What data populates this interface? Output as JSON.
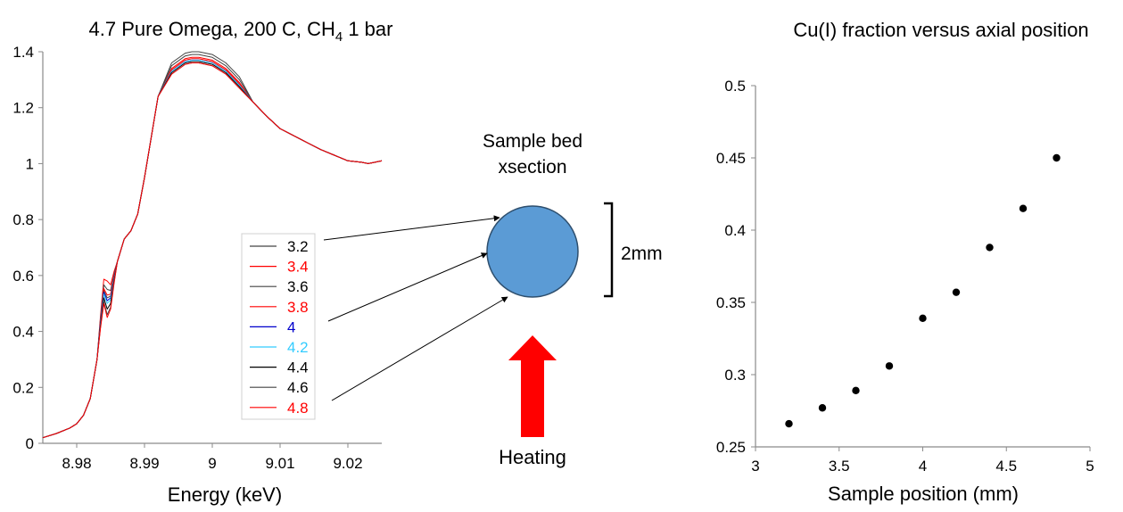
{
  "left_chart": {
    "title_main": "4.7 Pure Omega, 200 C, CH",
    "title_sub": "4",
    "title_tail": " 1 bar",
    "xlabel": "Energy (keV)"
  },
  "diagram": {
    "bed_label_line1": "Sample bed",
    "bed_label_line2": "xsection",
    "size_label": "2mm",
    "heating_label": "Heating",
    "circle_color": "#5b9bd5",
    "arrow_color": "#ff0000"
  },
  "right_chart": {
    "title": "Cu(I) fraction versus axial position",
    "xlabel": "Sample position (mm)"
  },
  "chart_data": [
    {
      "type": "line",
      "title": "4.7 Pure Omega, 200 C, CH4 1 bar",
      "xlabel": "Energy (keV)",
      "ylabel": "",
      "xlim": [
        8.975,
        9.025
      ],
      "ylim": [
        0,
        1.4
      ],
      "xticks": [
        "8.98",
        "8.99",
        "9",
        "9.01",
        "9.02"
      ],
      "yticks": [
        "0",
        "0.2",
        "0.4",
        "0.6",
        "0.8",
        "1",
        "1.2",
        "1.4"
      ],
      "grid": false,
      "legend_position": "center-right",
      "x": [
        8.975,
        8.977,
        8.979,
        8.98,
        8.981,
        8.982,
        8.983,
        8.9835,
        8.984,
        8.9845,
        8.985,
        8.9855,
        8.986,
        8.987,
        8.988,
        8.989,
        8.99,
        8.992,
        8.994,
        8.996,
        8.997,
        8.998,
        9.0,
        9.002,
        9.004,
        9.006,
        9.008,
        9.01,
        9.012,
        9.014,
        9.016,
        9.018,
        9.02,
        9.022,
        9.023,
        9.024,
        9.025
      ],
      "series": [
        {
          "name": "3.2",
          "color": "#444444",
          "peak_bump": 0.04,
          "top": 0.03
        },
        {
          "name": "3.4",
          "color": "#ff0000",
          "peak_bump": 0.1,
          "top": 0.01
        },
        {
          "name": "3.6",
          "color": "#444444",
          "peak_bump": 0.07,
          "top": 0.02
        },
        {
          "name": "3.8",
          "color": "#ff0000",
          "peak_bump": 0.05,
          "top": 0.005
        },
        {
          "name": "4",
          "color": "#0000cc",
          "peak_bump": 0.03,
          "top": 0.0
        },
        {
          "name": "4.2",
          "color": "#33ccff",
          "peak_bump": 0.02,
          "top": 0.0
        },
        {
          "name": "4.4",
          "color": "#000000",
          "peak_bump": 0.0,
          "top": -0.005
        },
        {
          "name": "4.6",
          "color": "#444444",
          "peak_bump": -0.02,
          "top": -0.01
        },
        {
          "name": "4.8",
          "color": "#ff0000",
          "peak_bump": -0.03,
          "top": -0.01
        }
      ],
      "base_curve": [
        0.02,
        0.035,
        0.055,
        0.07,
        0.1,
        0.16,
        0.3,
        0.42,
        0.52,
        0.48,
        0.5,
        0.58,
        0.65,
        0.73,
        0.76,
        0.82,
        0.95,
        1.24,
        1.33,
        1.365,
        1.37,
        1.37,
        1.36,
        1.33,
        1.28,
        1.22,
        1.17,
        1.125,
        1.1,
        1.075,
        1.05,
        1.03,
        1.01,
        1.005,
        1.0,
        1.005,
        1.01
      ]
    },
    {
      "type": "scatter",
      "title": "Cu(I) fraction versus axial position",
      "xlabel": "Sample position (mm)",
      "ylabel": "",
      "xlim": [
        3,
        5
      ],
      "ylim": [
        0.25,
        0.5
      ],
      "xticks": [
        "3",
        "3.5",
        "4",
        "4.5",
        "5"
      ],
      "yticks": [
        "0.25",
        "0.3",
        "0.35",
        "0.4",
        "0.45",
        "0.5"
      ],
      "grid": false,
      "x": [
        3.2,
        3.4,
        3.6,
        3.8,
        4.0,
        4.2,
        4.4,
        4.6,
        4.8
      ],
      "y": [
        0.266,
        0.277,
        0.289,
        0.306,
        0.339,
        0.357,
        0.388,
        0.415,
        0.45
      ]
    }
  ]
}
